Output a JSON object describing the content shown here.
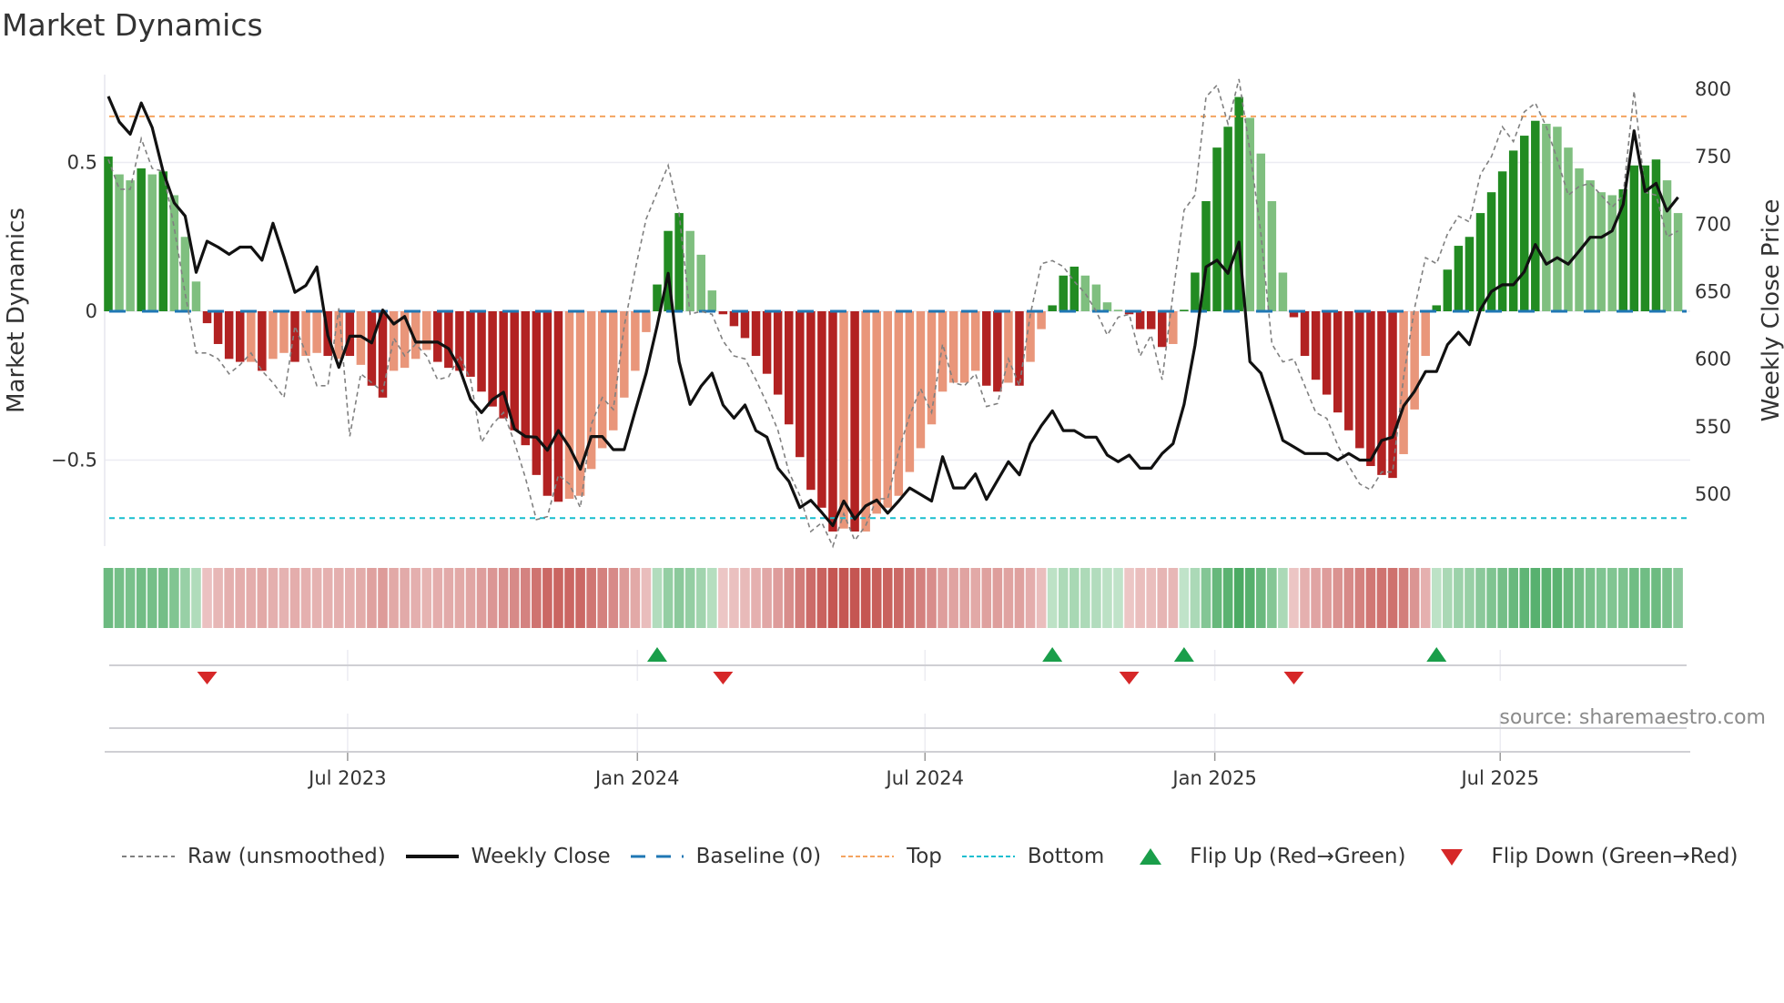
{
  "title": "Market Dynamics",
  "source": "source: sharemaestro.com",
  "legend": {
    "raw": "Raw (unsmoothed)",
    "close": "Weekly Close",
    "baseline": "Baseline (0)",
    "top": "Top",
    "bottom": "Bottom",
    "flip_up": "Flip Up (Red→Green)",
    "flip_down": "Flip Down (Green→Red)"
  },
  "colors": {
    "pos_strong": "#228b22",
    "pos_weak": "#7fbf7f",
    "neg_strong": "#b22222",
    "neg_weak": "#e9967a",
    "raw": "#808080",
    "close": "#111111",
    "baseline": "#1f77b4",
    "top": "#f4a460",
    "bottom": "#17becf",
    "flip_up": "#1a9e4a",
    "flip_down": "#d62728"
  },
  "chart_data": {
    "type": "bar",
    "title": "Market Dynamics",
    "ylabel": "Market Dynamics",
    "y2label": "Weekly Close Price",
    "ylim": [
      -0.8,
      0.8
    ],
    "y2lim": [
      465,
      810
    ],
    "yticks": [
      {
        "v": 0.5,
        "label": "0.5"
      },
      {
        "v": 0,
        "label": "0"
      },
      {
        "v": -0.5,
        "label": "−0.5"
      }
    ],
    "y2ticks": [
      {
        "v": 800,
        "label": "800"
      },
      {
        "v": 750,
        "label": "750"
      },
      {
        "v": 700,
        "label": "700"
      },
      {
        "v": 650,
        "label": "650"
      },
      {
        "v": 600,
        "label": "600"
      },
      {
        "v": 550,
        "label": "550"
      },
      {
        "v": 500,
        "label": "500"
      }
    ],
    "x_unit": "week index",
    "xticks": [
      {
        "week": 21.8,
        "label": "Jul 2023"
      },
      {
        "week": 48.2,
        "label": "Jan 2024"
      },
      {
        "week": 74.4,
        "label": "Jul 2024"
      },
      {
        "week": 100.8,
        "label": "Jan 2025"
      },
      {
        "week": 126.8,
        "label": "Jul 2025"
      }
    ],
    "top_level": 0.655,
    "bottom_level": -0.695,
    "baseline": 0,
    "momentum": [
      0.52,
      0.46,
      0.44,
      0.48,
      0.46,
      0.47,
      0.39,
      0.25,
      0.1,
      -0.04,
      -0.11,
      -0.16,
      -0.17,
      -0.17,
      -0.2,
      -0.16,
      -0.14,
      -0.17,
      -0.15,
      -0.14,
      -0.15,
      -0.16,
      -0.15,
      -0.18,
      -0.25,
      -0.29,
      -0.2,
      -0.19,
      -0.16,
      -0.13,
      -0.17,
      -0.19,
      -0.2,
      -0.22,
      -0.27,
      -0.32,
      -0.36,
      -0.4,
      -0.45,
      -0.55,
      -0.62,
      -0.64,
      -0.63,
      -0.62,
      -0.53,
      -0.46,
      -0.4,
      -0.29,
      -0.2,
      -0.07,
      0.09,
      0.27,
      0.33,
      0.27,
      0.19,
      0.07,
      -0.01,
      -0.05,
      -0.09,
      -0.15,
      -0.21,
      -0.28,
      -0.38,
      -0.49,
      -0.6,
      -0.66,
      -0.74,
      -0.73,
      -0.74,
      -0.74,
      -0.68,
      -0.66,
      -0.62,
      -0.54,
      -0.46,
      -0.38,
      -0.27,
      -0.24,
      -0.24,
      -0.2,
      -0.25,
      -0.27,
      -0.24,
      -0.25,
      -0.17,
      -0.06,
      0.02,
      0.12,
      0.15,
      0.12,
      0.09,
      0.03,
      0.005,
      -0.01,
      -0.06,
      -0.06,
      -0.12,
      -0.11,
      0.005,
      0.13,
      0.37,
      0.55,
      0.62,
      0.72,
      0.65,
      0.53,
      0.37,
      0.13,
      -0.02,
      -0.15,
      -0.23,
      -0.28,
      -0.34,
      -0.4,
      -0.46,
      -0.52,
      -0.55,
      -0.56,
      -0.48,
      -0.33,
      -0.15,
      0.02,
      0.14,
      0.22,
      0.25,
      0.33,
      0.4,
      0.47,
      0.54,
      0.59,
      0.64,
      0.63,
      0.62,
      0.55,
      0.48,
      0.44,
      0.4,
      0.39,
      0.41,
      0.49,
      0.49,
      0.51,
      0.44,
      0.33
    ],
    "shade": [
      "d",
      "l",
      "l",
      "d",
      "l",
      "d",
      "l",
      "l",
      "l",
      "d",
      "d",
      "d",
      "d",
      "l",
      "d",
      "l",
      "l",
      "d",
      "l",
      "l",
      "d",
      "l",
      "d",
      "l",
      "d",
      "d",
      "l",
      "l",
      "l",
      "l",
      "d",
      "d",
      "d",
      "d",
      "d",
      "d",
      "d",
      "d",
      "d",
      "d",
      "d",
      "d",
      "l",
      "l",
      "l",
      "l",
      "l",
      "l",
      "l",
      "l",
      "d",
      "d",
      "d",
      "l",
      "l",
      "l",
      "d",
      "d",
      "d",
      "d",
      "d",
      "d",
      "d",
      "d",
      "d",
      "d",
      "d",
      "l",
      "d",
      "l",
      "l",
      "l",
      "l",
      "l",
      "l",
      "l",
      "l",
      "l",
      "l",
      "l",
      "d",
      "d",
      "l",
      "d",
      "l",
      "l",
      "d",
      "d",
      "d",
      "l",
      "l",
      "l",
      "l",
      "d",
      "d",
      "d",
      "d",
      "l",
      "d",
      "d",
      "d",
      "d",
      "d",
      "d",
      "l",
      "l",
      "l",
      "l",
      "d",
      "d",
      "d",
      "d",
      "d",
      "d",
      "d",
      "d",
      "d",
      "d",
      "l",
      "l",
      "l",
      "d",
      "d",
      "d",
      "d",
      "d",
      "d",
      "d",
      "d",
      "d",
      "d",
      "l",
      "l",
      "l",
      "l",
      "l",
      "l",
      "l",
      "d",
      "d",
      "d",
      "d",
      "l",
      "l"
    ],
    "raw": [
      0.51,
      0.41,
      0.41,
      0.58,
      0.48,
      0.47,
      0.28,
      0.06,
      -0.14,
      -0.14,
      -0.16,
      -0.21,
      -0.18,
      -0.14,
      -0.2,
      -0.24,
      -0.29,
      -0.05,
      -0.14,
      -0.25,
      -0.25,
      0.01,
      -0.42,
      -0.21,
      -0.24,
      -0.27,
      -0.09,
      -0.15,
      -0.11,
      -0.15,
      -0.23,
      -0.22,
      -0.15,
      -0.23,
      -0.44,
      -0.38,
      -0.34,
      -0.44,
      -0.56,
      -0.7,
      -0.69,
      -0.55,
      -0.58,
      -0.66,
      -0.38,
      -0.29,
      -0.33,
      -0.05,
      0.14,
      0.31,
      0.4,
      0.49,
      0.33,
      -0.01,
      0.0,
      -0.01,
      -0.1,
      -0.15,
      -0.16,
      -0.23,
      -0.31,
      -0.4,
      -0.54,
      -0.62,
      -0.74,
      -0.71,
      -0.79,
      -0.68,
      -0.77,
      -0.72,
      -0.63,
      -0.63,
      -0.47,
      -0.35,
      -0.26,
      -0.34,
      -0.11,
      -0.24,
      -0.25,
      -0.21,
      -0.32,
      -0.31,
      -0.16,
      -0.25,
      -0.01,
      0.16,
      0.17,
      0.15,
      0.1,
      0.06,
      0.0,
      -0.08,
      -0.02,
      -0.01,
      -0.15,
      -0.08,
      -0.23,
      0.06,
      0.34,
      0.39,
      0.72,
      0.76,
      0.63,
      0.78,
      0.54,
      0.26,
      -0.11,
      -0.17,
      -0.16,
      -0.25,
      -0.34,
      -0.36,
      -0.45,
      -0.52,
      -0.58,
      -0.6,
      -0.54,
      -0.54,
      -0.22,
      0.01,
      0.18,
      0.16,
      0.26,
      0.32,
      0.3,
      0.46,
      0.52,
      0.62,
      0.57,
      0.67,
      0.7,
      0.62,
      0.51,
      0.39,
      0.42,
      0.43,
      0.39,
      0.35,
      0.39,
      0.74,
      0.4,
      0.39,
      0.25,
      0.27
    ],
    "close": [
      794.7,
      775.7,
      766.7,
      789.8,
      771.6,
      738.8,
      715.8,
      706.1,
      664.3,
      687.4,
      683.0,
      677.7,
      683.0,
      683.0,
      673.3,
      700.7,
      675.7,
      649.5,
      654.6,
      668.4,
      617.5,
      593.9,
      617.0,
      617.0,
      612.1,
      636.4,
      626.0,
      631.6,
      612.6,
      612.6,
      612.6,
      607.8,
      593.2,
      570.1,
      560.4,
      570.1,
      575.5,
      548.3,
      542.7,
      542.2,
      532.5,
      547.1,
      534.9,
      518.4,
      542.7,
      542.7,
      533.0,
      533.0,
      561.7,
      589.6,
      624.8,
      663.6,
      598.1,
      566.5,
      579.9,
      589.6,
      566.0,
      556.3,
      566.0,
      547.1,
      542.2,
      519.2,
      509.5,
      490.0,
      495.4,
      486.4,
      476.7,
      494.9,
      481.6,
      491.3,
      495.6,
      485.9,
      494.9,
      504.6,
      499.8,
      494.9,
      527.7,
      504.6,
      504.6,
      515.0,
      496.1,
      510.2,
      524.0,
      514.3,
      537.4,
      550.7,
      561.7,
      547.1,
      547.1,
      542.2,
      542.2,
      528.9,
      524.0,
      528.9,
      519.2,
      519.2,
      530.1,
      537.4,
      566.5,
      610.2,
      668.4,
      673.3,
      663.6,
      686.7,
      598.1,
      589.6,
      565.3,
      539.8,
      535.0,
      530.1,
      530.1,
      530.1,
      525.2,
      530.1,
      525.2,
      525.2,
      539.8,
      542.2,
      565.3,
      576.2,
      590.8,
      590.8,
      610.7,
      619.9,
      610.7,
      636.9,
      650.2,
      655.1,
      655.1,
      664.8,
      684.9,
      670.4,
      675.2,
      670.4,
      680.1,
      690.3,
      690.3,
      695.1,
      714.6,
      769.2,
      724.3,
      730.3,
      709.7,
      719.9
    ],
    "flip_up_weeks": [
      50,
      86,
      98,
      121
    ],
    "flip_down_weeks": [
      9,
      56,
      93,
      108
    ],
    "legend_position": "bottom"
  }
}
